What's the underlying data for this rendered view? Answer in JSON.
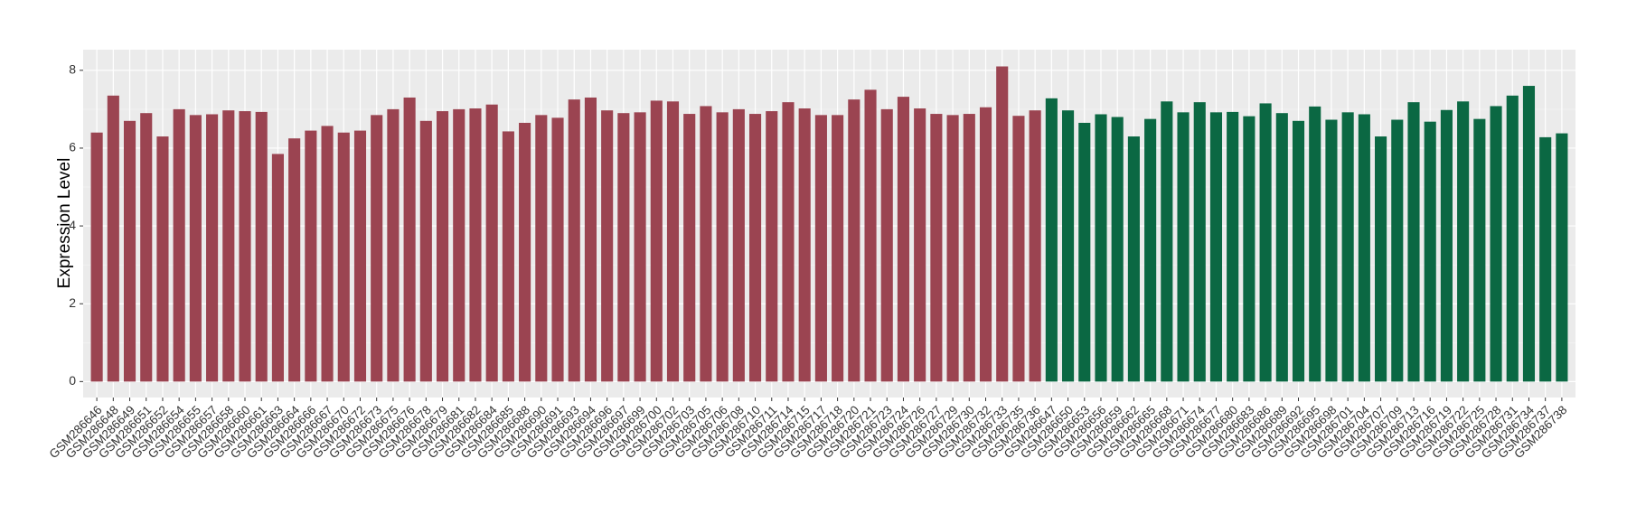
{
  "chart_data": {
    "type": "bar",
    "y_label": "Expression Level",
    "ylim": [
      -0.41,
      8.53
    ],
    "yticks": [
      0,
      2,
      4,
      6,
      8
    ],
    "grid": true,
    "series": [
      {
        "color": "#9b4451",
        "categories": [
          "GSM286646",
          "GSM286648",
          "GSM286649",
          "GSM286651",
          "GSM286652",
          "GSM286654",
          "GSM286655",
          "GSM286657",
          "GSM286658",
          "GSM286660",
          "GSM286661",
          "GSM286663",
          "GSM286664",
          "GSM286666",
          "GSM286667",
          "GSM286670",
          "GSM286672",
          "GSM286673",
          "GSM286675",
          "GSM286676",
          "GSM286678",
          "GSM286679",
          "GSM286681",
          "GSM286682",
          "GSM286684",
          "GSM286685",
          "GSM286688",
          "GSM286690",
          "GSM286691",
          "GSM286693",
          "GSM286694",
          "GSM286696",
          "GSM286697",
          "GSM286699",
          "GSM286700",
          "GSM286702",
          "GSM286703",
          "GSM286705",
          "GSM286706",
          "GSM286708",
          "GSM286710",
          "GSM286711",
          "GSM286714",
          "GSM286715",
          "GSM286717",
          "GSM286718",
          "GSM286720",
          "GSM286721",
          "GSM286723",
          "GSM286724",
          "GSM286726",
          "GSM286727",
          "GSM286729",
          "GSM286730",
          "GSM286732",
          "GSM286733",
          "GSM286735",
          "GSM286736"
        ],
        "values": [
          6.4,
          7.35,
          6.7,
          6.9,
          6.3,
          7.0,
          6.85,
          6.87,
          6.97,
          6.95,
          6.93,
          5.85,
          6.25,
          6.45,
          6.57,
          6.4,
          6.45,
          6.85,
          7.0,
          7.3,
          6.7,
          6.95,
          7.0,
          7.02,
          7.12,
          6.43,
          6.65,
          6.85,
          6.78,
          7.25,
          7.3,
          6.97,
          6.9,
          6.92,
          7.22,
          7.2,
          6.88,
          7.08,
          6.92,
          7.0,
          6.88,
          6.95,
          7.18,
          7.02,
          6.85,
          6.85,
          7.25,
          7.5,
          7.0,
          7.32,
          7.02,
          6.88,
          6.85,
          6.88,
          7.05,
          8.1,
          6.83,
          6.97
        ]
      },
      {
        "color": "#0b6843",
        "categories": [
          "GSM286647",
          "GSM286650",
          "GSM286653",
          "GSM286656",
          "GSM286659",
          "GSM286662",
          "GSM286665",
          "GSM286668",
          "GSM286671",
          "GSM286674",
          "GSM286677",
          "GSM286680",
          "GSM286683",
          "GSM286686",
          "GSM286689",
          "GSM286692",
          "GSM286695",
          "GSM286698",
          "GSM286701",
          "GSM286704",
          "GSM286707",
          "GSM286709",
          "GSM286713",
          "GSM286716",
          "GSM286719",
          "GSM286722",
          "GSM286725",
          "GSM286728",
          "GSM286731",
          "GSM286734",
          "GSM286737",
          "GSM286738"
        ],
        "values": [
          7.28,
          6.97,
          6.65,
          6.87,
          6.8,
          6.3,
          6.75,
          7.2,
          6.92,
          7.18,
          6.92,
          6.93,
          6.82,
          7.15,
          6.9,
          6.7,
          7.07,
          6.73,
          6.92,
          6.87,
          6.3,
          6.73,
          7.18,
          6.68,
          6.98,
          7.2,
          6.75,
          7.08,
          7.35,
          7.6,
          6.28,
          6.38
        ]
      }
    ]
  }
}
